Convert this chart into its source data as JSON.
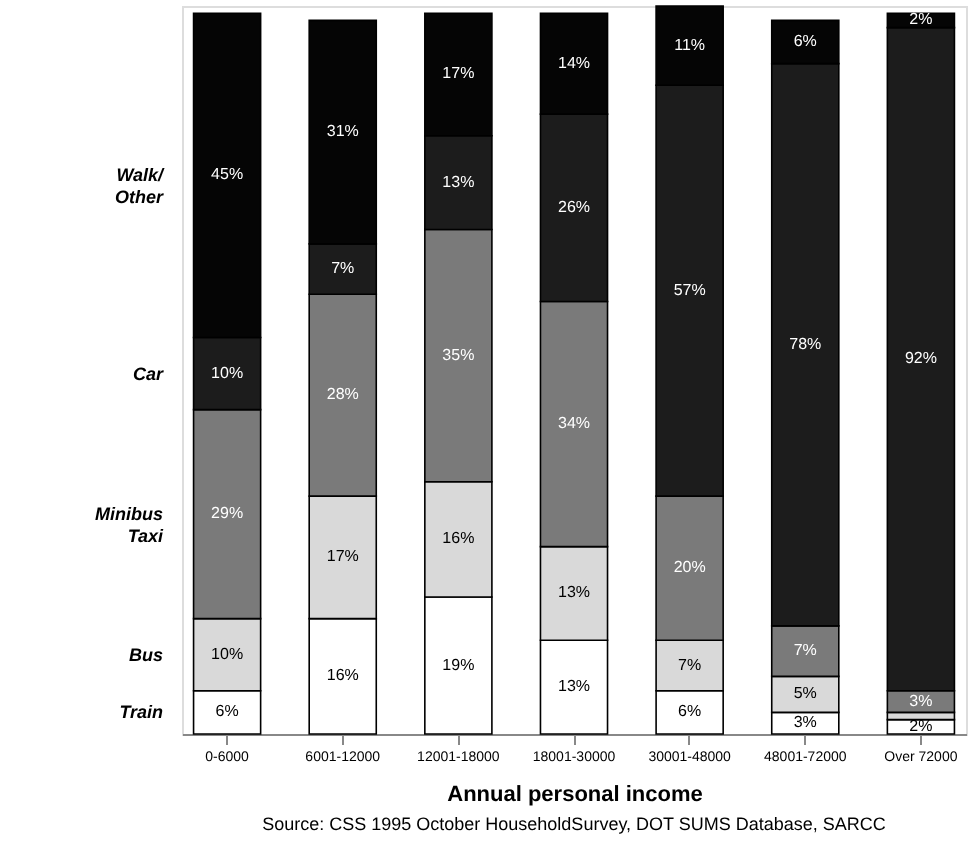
{
  "chart_data": {
    "type": "bar",
    "stacked": true,
    "xlabel": "Annual personal income",
    "categories": [
      "0-6000",
      "6001-12000",
      "12001-18000",
      "18001-30000",
      "30001-48000",
      "48001-72000",
      "Over 72000"
    ],
    "series": [
      {
        "name": "Train",
        "color": "#ffffff",
        "values": [
          6,
          16,
          19,
          13,
          6,
          3,
          2
        ],
        "value_labels": [
          "6%",
          "16%",
          "19%",
          "13%",
          "6%",
          "3%",
          "2%"
        ]
      },
      {
        "name": "Bus",
        "color": "#d9d9d9",
        "values": [
          10,
          17,
          16,
          13,
          7,
          5,
          1
        ],
        "value_labels": [
          "10%",
          "17%",
          "16%",
          "13%",
          "7%",
          "5%",
          null
        ]
      },
      {
        "name": "Minibus Taxi",
        "color": "#7a7a7a",
        "values": [
          29,
          28,
          35,
          34,
          20,
          7,
          3
        ],
        "value_labels": [
          "29%",
          "28%",
          "35%",
          "34%",
          "20%",
          "7%",
          "3%"
        ]
      },
      {
        "name": "Car",
        "color": "#1c1c1c",
        "values": [
          10,
          7,
          13,
          26,
          57,
          78,
          92
        ],
        "value_labels": [
          "10%",
          "7%",
          "13%",
          "26%",
          "57%",
          "78%",
          "92%"
        ]
      },
      {
        "name": "Walk/ Other",
        "color": "#050505",
        "values": [
          45,
          31,
          17,
          14,
          11,
          6,
          2
        ],
        "value_labels": [
          "45%",
          "31%",
          "17%",
          "14%",
          "11%",
          "6%",
          "2%"
        ]
      }
    ],
    "ylim": [
      0,
      101
    ],
    "tick_labels": "x",
    "annotations": [
      "Source:   CSS 1995 October HouseholdSurvey, DOT SUMS Database, SARCC"
    ]
  }
}
